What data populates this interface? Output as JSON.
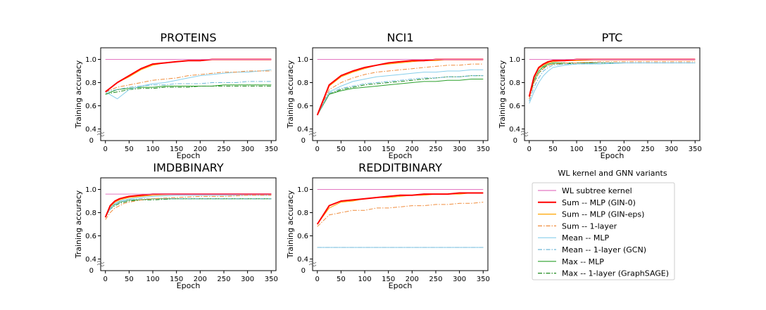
{
  "legend": {
    "title": "WL kernel and GNN variants",
    "entries": [
      {
        "label": "WL subtree kernel",
        "color": "#e377c2",
        "style": "solid",
        "width": 1
      },
      {
        "label": "Sum -- MLP (GIN-0)",
        "color": "#ff0000",
        "style": "solid",
        "width": 2
      },
      {
        "label": "Sum -- MLP (GIN-eps)",
        "color": "#ffa500",
        "style": "solid",
        "width": 1
      },
      {
        "label": "Sum -- 1-layer",
        "color": "#f08c3c",
        "style": "dashdot",
        "width": 1
      },
      {
        "label": "Mean -- MLP",
        "color": "#87ceeb",
        "style": "solid",
        "width": 1
      },
      {
        "label": "Mean -- 1-layer (GCN)",
        "color": "#6fb7d8",
        "style": "dashdot",
        "width": 1
      },
      {
        "label": "Max -- MLP",
        "color": "#2ca02c",
        "style": "solid",
        "width": 1
      },
      {
        "label": "Max -- 1-layer (GraphSAGE)",
        "color": "#1f8a1f",
        "style": "dashdot",
        "width": 1
      }
    ]
  },
  "chart_data": [
    {
      "type": "line",
      "title": "PROTEINS",
      "xlabel": "Epoch",
      "ylabel": "Training accuracy",
      "xlim": [
        -10,
        360
      ],
      "ylim": [
        0.3,
        1.1
      ],
      "xticks": [
        "0",
        "50",
        "100",
        "150",
        "200",
        "250",
        "300",
        "350"
      ],
      "yticks": [
        "0.4",
        "0.6",
        "0.8",
        "1.0"
      ],
      "ybreak_label": "0",
      "x": [
        0,
        25,
        50,
        75,
        100,
        125,
        150,
        175,
        200,
        225,
        250,
        275,
        300,
        325,
        350
      ],
      "series": [
        {
          "name": "WL subtree kernel",
          "values": [
            1.0,
            1.0,
            1.0,
            1.0,
            1.0,
            1.0,
            1.0,
            1.0,
            1.0,
            1.0,
            1.0,
            1.0,
            1.0,
            1.0,
            1.0
          ]
        },
        {
          "name": "Sum -- MLP (GIN-0)",
          "values": [
            0.72,
            0.8,
            0.86,
            0.92,
            0.96,
            0.97,
            0.98,
            0.99,
            0.99,
            1.0,
            1.0,
            1.0,
            1.0,
            1.0,
            1.0
          ]
        },
        {
          "name": "Sum -- MLP (GIN-eps)",
          "values": [
            0.72,
            0.8,
            0.85,
            0.91,
            0.95,
            0.97,
            0.98,
            0.99,
            0.99,
            1.0,
            1.0,
            1.0,
            1.0,
            1.0,
            1.0
          ]
        },
        {
          "name": "Sum -- 1-layer",
          "values": [
            0.72,
            0.76,
            0.78,
            0.8,
            0.82,
            0.83,
            0.84,
            0.86,
            0.87,
            0.88,
            0.89,
            0.89,
            0.9,
            0.9,
            0.9
          ]
        },
        {
          "name": "Mean -- MLP",
          "values": [
            0.72,
            0.66,
            0.74,
            0.77,
            0.79,
            0.8,
            0.82,
            0.84,
            0.86,
            0.87,
            0.88,
            0.89,
            0.89,
            0.9,
            0.91
          ]
        },
        {
          "name": "Mean -- 1-layer (GCN)",
          "values": [
            0.72,
            0.74,
            0.76,
            0.77,
            0.78,
            0.78,
            0.79,
            0.79,
            0.79,
            0.8,
            0.8,
            0.8,
            0.81,
            0.81,
            0.81
          ]
        },
        {
          "name": "Max -- MLP",
          "values": [
            0.7,
            0.74,
            0.75,
            0.76,
            0.76,
            0.77,
            0.77,
            0.77,
            0.77,
            0.77,
            0.78,
            0.78,
            0.78,
            0.78,
            0.78
          ]
        },
        {
          "name": "Max -- 1-layer (GraphSAGE)",
          "values": [
            0.7,
            0.72,
            0.74,
            0.75,
            0.75,
            0.76,
            0.76,
            0.76,
            0.77,
            0.77,
            0.77,
            0.77,
            0.77,
            0.77,
            0.77
          ]
        }
      ]
    },
    {
      "type": "line",
      "title": "NCI1",
      "xlabel": "Epoch",
      "ylabel": "Training accuracy",
      "xlim": [
        -10,
        360
      ],
      "ylim": [
        0.3,
        1.1
      ],
      "xticks": [
        "0",
        "50",
        "100",
        "150",
        "200",
        "250",
        "300",
        "350"
      ],
      "yticks": [
        "0.4",
        "0.6",
        "0.8",
        "1.0"
      ],
      "ybreak_label": "0",
      "x": [
        0,
        25,
        50,
        75,
        100,
        125,
        150,
        175,
        200,
        225,
        250,
        275,
        300,
        325,
        350
      ],
      "series": [
        {
          "name": "WL subtree kernel",
          "values": [
            1.0,
            1.0,
            1.0,
            1.0,
            1.0,
            1.0,
            1.0,
            1.0,
            1.0,
            1.0,
            1.0,
            1.0,
            1.0,
            1.0,
            1.0
          ]
        },
        {
          "name": "Sum -- MLP (GIN-0)",
          "values": [
            0.52,
            0.78,
            0.86,
            0.9,
            0.93,
            0.95,
            0.97,
            0.98,
            0.99,
            0.99,
            1.0,
            1.0,
            1.0,
            1.0,
            1.0
          ]
        },
        {
          "name": "Sum -- MLP (GIN-eps)",
          "values": [
            0.52,
            0.77,
            0.85,
            0.89,
            0.92,
            0.95,
            0.96,
            0.97,
            0.98,
            0.99,
            0.99,
            1.0,
            1.0,
            1.0,
            1.0
          ]
        },
        {
          "name": "Sum -- 1-layer",
          "values": [
            0.52,
            0.74,
            0.8,
            0.84,
            0.87,
            0.89,
            0.9,
            0.91,
            0.92,
            0.93,
            0.94,
            0.95,
            0.95,
            0.96,
            0.96
          ]
        },
        {
          "name": "Mean -- MLP",
          "values": [
            0.52,
            0.72,
            0.77,
            0.81,
            0.83,
            0.85,
            0.86,
            0.87,
            0.88,
            0.89,
            0.89,
            0.9,
            0.9,
            0.91,
            0.91
          ]
        },
        {
          "name": "Mean -- 1-layer (GCN)",
          "values": [
            0.52,
            0.71,
            0.75,
            0.77,
            0.79,
            0.8,
            0.81,
            0.82,
            0.83,
            0.84,
            0.84,
            0.85,
            0.85,
            0.86,
            0.86
          ]
        },
        {
          "name": "Max -- MLP",
          "values": [
            0.52,
            0.7,
            0.73,
            0.75,
            0.76,
            0.77,
            0.78,
            0.79,
            0.8,
            0.81,
            0.81,
            0.82,
            0.82,
            0.83,
            0.83
          ]
        },
        {
          "name": "Max -- 1-layer (GraphSAGE)",
          "values": [
            0.52,
            0.7,
            0.74,
            0.76,
            0.78,
            0.79,
            0.8,
            0.81,
            0.82,
            0.83,
            0.84,
            0.85,
            0.85,
            0.86,
            0.86
          ]
        }
      ]
    },
    {
      "type": "line",
      "title": "PTC",
      "xlabel": "Epoch",
      "ylabel": "Training accuracy",
      "xlim": [
        -10,
        360
      ],
      "ylim": [
        0.3,
        1.1
      ],
      "xticks": [
        "0",
        "50",
        "100",
        "150",
        "200",
        "250",
        "300",
        "350"
      ],
      "yticks": [
        "0.4",
        "0.6",
        "0.8",
        "1.0"
      ],
      "ybreak_label": "0",
      "x": [
        0,
        10,
        20,
        30,
        40,
        50,
        75,
        100,
        150,
        200,
        250,
        300,
        350
      ],
      "series": [
        {
          "name": "WL subtree kernel",
          "values": [
            1.0,
            1.0,
            1.0,
            1.0,
            1.0,
            1.0,
            1.0,
            1.0,
            1.0,
            1.0,
            1.0,
            1.0,
            1.0
          ]
        },
        {
          "name": "Sum -- MLP (GIN-0)",
          "values": [
            0.68,
            0.85,
            0.93,
            0.96,
            0.98,
            0.99,
            0.99,
            1.0,
            1.0,
            1.0,
            1.0,
            1.0,
            1.0
          ]
        },
        {
          "name": "Sum -- MLP (GIN-eps)",
          "values": [
            0.68,
            0.84,
            0.92,
            0.95,
            0.97,
            0.98,
            0.99,
            0.99,
            1.0,
            1.0,
            1.0,
            1.0,
            1.0
          ]
        },
        {
          "name": "Sum -- 1-layer",
          "values": [
            0.66,
            0.8,
            0.88,
            0.92,
            0.95,
            0.96,
            0.97,
            0.97,
            0.98,
            0.98,
            0.98,
            0.98,
            0.98
          ]
        },
        {
          "name": "Mean -- MLP",
          "values": [
            0.62,
            0.72,
            0.8,
            0.86,
            0.9,
            0.93,
            0.95,
            0.96,
            0.96,
            0.97,
            0.97,
            0.97,
            0.97
          ]
        },
        {
          "name": "Mean -- 1-layer (GCN)",
          "values": [
            0.64,
            0.76,
            0.84,
            0.9,
            0.93,
            0.95,
            0.96,
            0.96,
            0.97,
            0.97,
            0.97,
            0.97,
            0.97
          ]
        },
        {
          "name": "Max -- MLP",
          "values": [
            0.68,
            0.82,
            0.9,
            0.94,
            0.96,
            0.97,
            0.97,
            0.97,
            0.97,
            0.97,
            0.97,
            0.97,
            0.97
          ]
        },
        {
          "name": "Max -- 1-layer (GraphSAGE)",
          "values": [
            0.68,
            0.8,
            0.88,
            0.93,
            0.95,
            0.96,
            0.96,
            0.97,
            0.97,
            0.97,
            0.97,
            0.97,
            0.97
          ]
        }
      ]
    },
    {
      "type": "line",
      "title": "IMDBBINARY",
      "xlabel": "Epoch",
      "ylabel": "Training accuracy",
      "xlim": [
        -10,
        360
      ],
      "ylim": [
        0.3,
        1.1
      ],
      "xticks": [
        "0",
        "50",
        "100",
        "150",
        "200",
        "250",
        "300",
        "350"
      ],
      "yticks": [
        "0.4",
        "0.6",
        "0.8",
        "1.0"
      ],
      "ybreak_label": "0",
      "x": [
        0,
        10,
        20,
        30,
        40,
        50,
        75,
        100,
        150,
        200,
        250,
        300,
        350
      ],
      "series": [
        {
          "name": "WL subtree kernel",
          "values": [
            0.96,
            0.96,
            0.96,
            0.96,
            0.96,
            0.96,
            0.96,
            0.96,
            0.96,
            0.96,
            0.96,
            0.96,
            0.96
          ]
        },
        {
          "name": "Sum -- MLP (GIN-0)",
          "values": [
            0.76,
            0.86,
            0.9,
            0.92,
            0.93,
            0.94,
            0.95,
            0.96,
            0.96,
            0.96,
            0.96,
            0.96,
            0.96
          ]
        },
        {
          "name": "Sum -- MLP (GIN-eps)",
          "values": [
            0.76,
            0.85,
            0.89,
            0.91,
            0.92,
            0.93,
            0.94,
            0.95,
            0.96,
            0.96,
            0.96,
            0.96,
            0.96
          ]
        },
        {
          "name": "Sum -- 1-layer",
          "values": [
            0.74,
            0.8,
            0.84,
            0.86,
            0.88,
            0.89,
            0.91,
            0.92,
            0.93,
            0.94,
            0.94,
            0.95,
            0.95
          ]
        },
        {
          "name": "Mean -- MLP",
          "values": [
            0.76,
            0.84,
            0.88,
            0.9,
            0.91,
            0.92,
            0.93,
            0.94,
            0.95,
            0.95,
            0.95,
            0.95,
            0.95
          ]
        },
        {
          "name": "Mean -- 1-layer (GCN)",
          "values": [
            0.76,
            0.83,
            0.87,
            0.89,
            0.9,
            0.91,
            0.92,
            0.92,
            0.92,
            0.92,
            0.92,
            0.92,
            0.92
          ]
        },
        {
          "name": "Max -- MLP",
          "values": [
            0.76,
            0.84,
            0.87,
            0.89,
            0.9,
            0.91,
            0.91,
            0.92,
            0.92,
            0.92,
            0.92,
            0.92,
            0.92
          ]
        },
        {
          "name": "Max -- 1-layer (GraphSAGE)",
          "values": [
            0.76,
            0.83,
            0.86,
            0.88,
            0.89,
            0.9,
            0.91,
            0.91,
            0.92,
            0.92,
            0.92,
            0.92,
            0.92
          ]
        }
      ]
    },
    {
      "type": "line",
      "title": "REDDITBINARY",
      "xlabel": "Epoch",
      "ylabel": "Training accuracy",
      "xlim": [
        -10,
        360
      ],
      "ylim": [
        0.3,
        1.1
      ],
      "xticks": [
        "0",
        "50",
        "100",
        "150",
        "200",
        "250",
        "300",
        "350"
      ],
      "yticks": [
        "0.4",
        "0.6",
        "0.8",
        "1.0"
      ],
      "ybreak_label": "0",
      "x": [
        0,
        25,
        50,
        75,
        100,
        125,
        150,
        175,
        200,
        225,
        250,
        275,
        300,
        325,
        350
      ],
      "series": [
        {
          "name": "WL subtree kernel",
          "values": [
            1.0,
            1.0,
            1.0,
            1.0,
            1.0,
            1.0,
            1.0,
            1.0,
            1.0,
            1.0,
            1.0,
            1.0,
            1.0,
            1.0,
            1.0
          ]
        },
        {
          "name": "Sum -- MLP (GIN-0)",
          "values": [
            0.7,
            0.86,
            0.9,
            0.91,
            0.92,
            0.93,
            0.94,
            0.95,
            0.95,
            0.96,
            0.96,
            0.96,
            0.97,
            0.97,
            0.97
          ]
        },
        {
          "name": "Sum -- MLP (GIN-eps)",
          "values": [
            0.7,
            0.84,
            0.89,
            0.9,
            0.92,
            0.93,
            0.93,
            0.94,
            0.95,
            0.95,
            0.96,
            0.96,
            0.96,
            0.97,
            0.97
          ]
        },
        {
          "name": "Sum -- 1-layer",
          "values": [
            0.68,
            0.78,
            0.8,
            0.82,
            0.82,
            0.84,
            0.84,
            0.85,
            0.86,
            0.86,
            0.87,
            0.87,
            0.88,
            0.88,
            0.89
          ]
        },
        {
          "name": "Mean -- MLP",
          "values": [
            0.5,
            0.5,
            0.5,
            0.5,
            0.5,
            0.5,
            0.5,
            0.5,
            0.5,
            0.5,
            0.5,
            0.5,
            0.5,
            0.5,
            0.5
          ]
        },
        {
          "name": "Mean -- 1-layer (GCN)",
          "values": [
            0.5,
            0.5,
            0.5,
            0.5,
            0.5,
            0.5,
            0.5,
            0.5,
            0.5,
            0.5,
            0.5,
            0.5,
            0.5,
            0.5,
            0.5
          ]
        },
        {
          "name": "Max -- MLP",
          "values": [
            0.5,
            0.5,
            0.5,
            0.5,
            0.5,
            0.5,
            0.5,
            0.5,
            0.5,
            0.5,
            0.5,
            0.5,
            0.5,
            0.5,
            0.5
          ]
        },
        {
          "name": "Max -- 1-layer (GraphSAGE)",
          "values": [
            0.5,
            0.5,
            0.5,
            0.5,
            0.5,
            0.5,
            0.5,
            0.5,
            0.5,
            0.5,
            0.5,
            0.5,
            0.5,
            0.5,
            0.5
          ]
        }
      ]
    }
  ]
}
